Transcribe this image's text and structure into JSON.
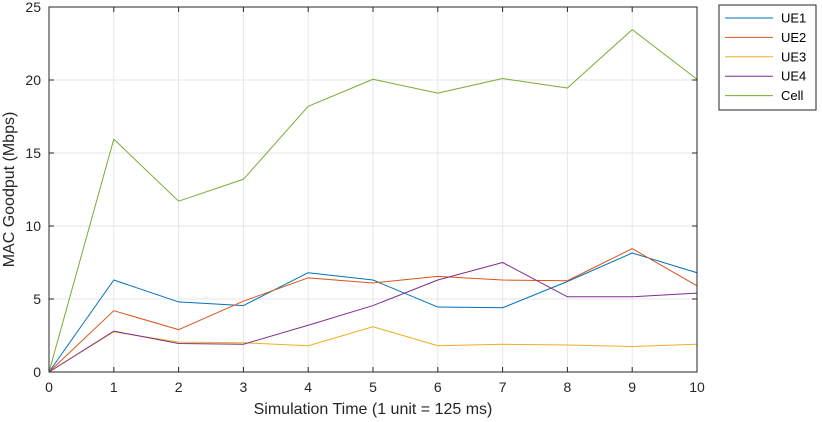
{
  "chart_data": {
    "type": "line",
    "title": "",
    "xlabel": "Simulation Time (1 unit = 125 ms)",
    "ylabel": "MAC Goodput (Mbps)",
    "x": [
      0,
      1,
      2,
      3,
      4,
      5,
      6,
      7,
      8,
      9,
      10
    ],
    "xlim": [
      0,
      10
    ],
    "ylim": [
      0,
      25
    ],
    "xticks": [
      0,
      1,
      2,
      3,
      4,
      5,
      6,
      7,
      8,
      9,
      10
    ],
    "yticks": [
      0,
      5,
      10,
      15,
      20,
      25
    ],
    "grid": true,
    "legend_position": "outside top-right",
    "series": [
      {
        "name": "UE1",
        "color": "#0072BD",
        "values": [
          0,
          6.3,
          4.8,
          4.55,
          6.8,
          6.3,
          4.45,
          4.4,
          6.2,
          8.15,
          6.8
        ]
      },
      {
        "name": "UE2",
        "color": "#D95319",
        "values": [
          0,
          4.2,
          2.9,
          4.85,
          6.45,
          6.1,
          6.55,
          6.3,
          6.25,
          8.45,
          5.9
        ]
      },
      {
        "name": "UE3",
        "color": "#EDB120",
        "values": [
          0,
          2.75,
          2.05,
          2.0,
          1.8,
          3.1,
          1.8,
          1.9,
          1.85,
          1.75,
          1.9
        ]
      },
      {
        "name": "UE4",
        "color": "#7E2F8E",
        "values": [
          0,
          2.8,
          1.95,
          1.9,
          3.2,
          4.55,
          6.3,
          7.5,
          5.15,
          5.15,
          5.4
        ]
      },
      {
        "name": "Cell",
        "color": "#77AC30",
        "values": [
          0,
          15.95,
          11.7,
          13.2,
          18.2,
          20.05,
          19.1,
          20.1,
          19.45,
          23.45,
          20.05
        ]
      }
    ]
  }
}
